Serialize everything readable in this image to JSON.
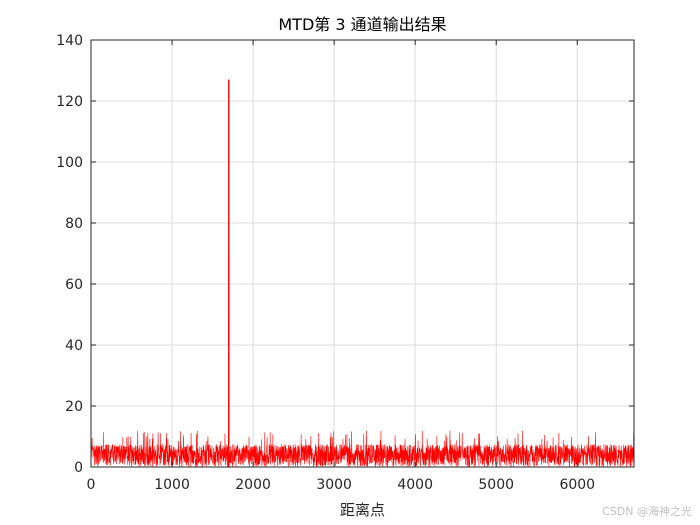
{
  "chart_data": {
    "type": "line",
    "title": "MTD第 3 通道输出结果",
    "xlabel": "距离点",
    "ylabel": "",
    "xlim": [
      0,
      6700
    ],
    "ylim": [
      0,
      140
    ],
    "x_ticks": [
      0,
      1000,
      2000,
      3000,
      4000,
      5000,
      6000
    ],
    "y_ticks": [
      0,
      20,
      40,
      60,
      80,
      100,
      120,
      140
    ],
    "grid": true,
    "series": [
      {
        "color": "#ff0000",
        "noise_floor_range": [
          0,
          12
        ],
        "peaks": [
          {
            "x": 1700,
            "y": 127
          }
        ]
      }
    ]
  },
  "watermark": "CSDN @海神之光"
}
